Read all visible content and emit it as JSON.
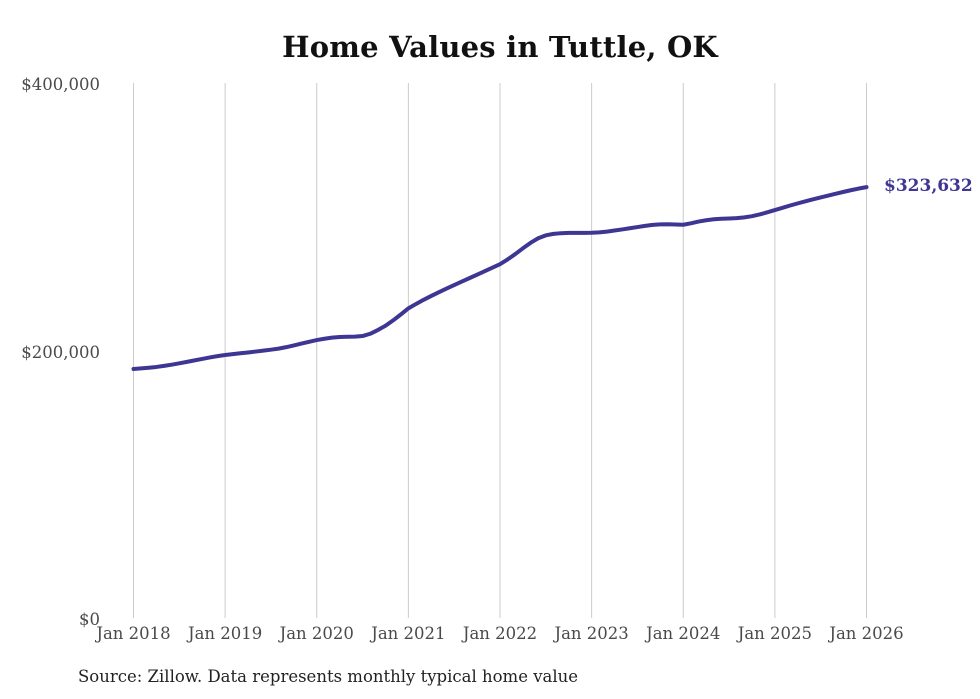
{
  "header": {
    "title": "Home Values in Tuttle, OK"
  },
  "chart_data": {
    "type": "line",
    "title": "Home Values in Tuttle, OK",
    "series_name": "Monthly typical home value",
    "frequency": "monthly",
    "x_start": "Jan 2018",
    "x_end": "Jan 2026",
    "x_tick_labels": [
      "Jan 2018",
      "Jan 2019",
      "Jan 2020",
      "Jan 2021",
      "Jan 2022",
      "Jan 2023",
      "Jan 2024",
      "Jan 2025",
      "Jan 2026"
    ],
    "y_tick_labels": [
      "$0",
      "$200,000",
      "$400,000"
    ],
    "y_tick_values": [
      0,
      200000,
      400000
    ],
    "ylim": [
      0,
      400000
    ],
    "grid": "vertical-only",
    "legend": "none",
    "line_color": "#3d3693",
    "gridline_color": "#cccccc",
    "end_label": "$323,632",
    "end_value": 323632,
    "values": [
      187700,
      188100,
      188600,
      189200,
      190000,
      190900,
      191900,
      193000,
      194100,
      195200,
      196300,
      197300,
      198100,
      198800,
      199400,
      200000,
      200700,
      201400,
      202100,
      202900,
      204000,
      205300,
      206700,
      208000,
      209300,
      210300,
      211100,
      211600,
      211800,
      211900,
      212300,
      214000,
      216800,
      220000,
      224000,
      228400,
      233000,
      236300,
      239400,
      242300,
      245100,
      247800,
      250400,
      253000,
      255600,
      258200,
      260800,
      263400,
      266000,
      269600,
      273600,
      277900,
      282000,
      285400,
      287600,
      288700,
      289200,
      289400,
      289400,
      289400,
      289500,
      289800,
      290400,
      291200,
      292000,
      292900,
      293800,
      294700,
      295400,
      295800,
      295900,
      295700,
      295500,
      296600,
      297900,
      298900,
      299600,
      300000,
      300200,
      300500,
      301000,
      301900,
      303200,
      304800,
      306500,
      308200,
      309900,
      311500,
      313000,
      314500,
      315900,
      317300,
      318700,
      320100,
      321400,
      322600,
      323632
    ]
  },
  "footer": {
    "source_note": "Source: Zillow. Data represents monthly typical home value"
  }
}
